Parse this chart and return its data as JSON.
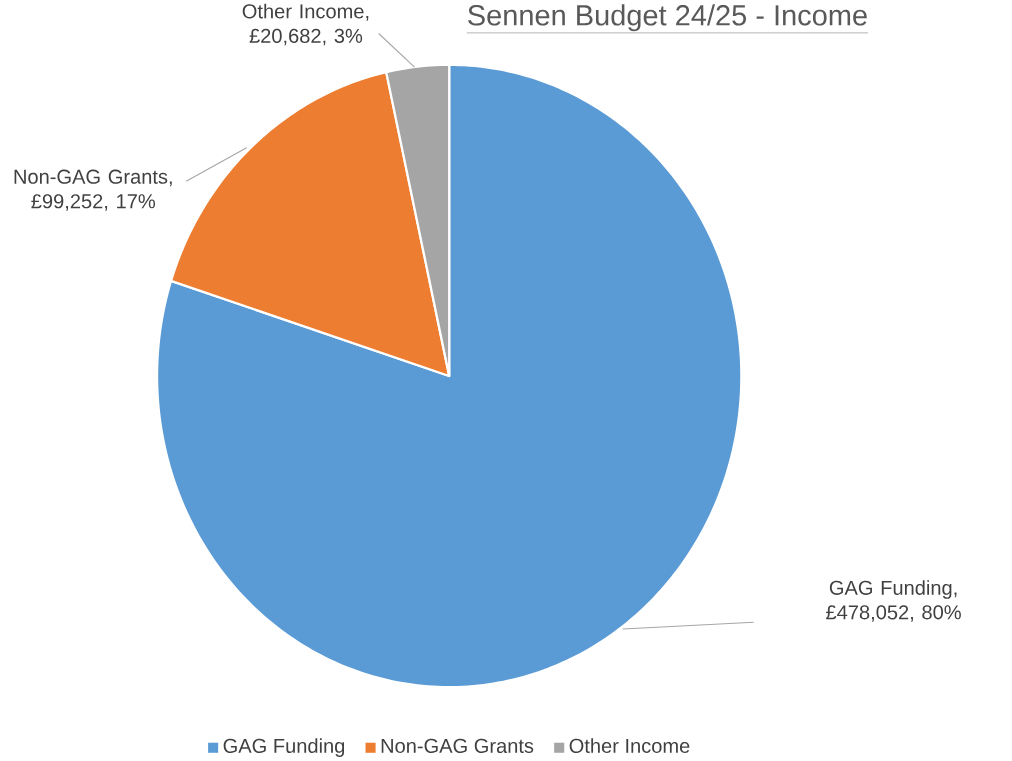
{
  "chart_data": {
    "type": "pie",
    "title": "Sennen Budget 24/25 - Income",
    "categories": [
      "GAG Funding",
      "Non-GAG Grants",
      "Other Income"
    ],
    "values": [
      478052,
      99252,
      20682
    ],
    "colors": [
      "#5b9bd5",
      "#ed7d31",
      "#a5a5a5"
    ],
    "value_labels": [
      "GAG Funding, £478,052, 80%",
      "Non-GAG Grants, £99,252, 17%",
      "Other Income, £20,682, 3%"
    ],
    "legend": "bottom"
  }
}
